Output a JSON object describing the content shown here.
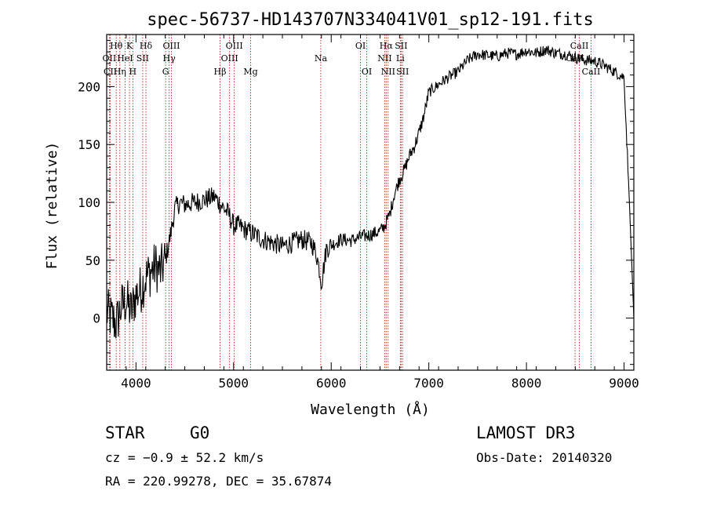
{
  "chart_data": {
    "type": "line",
    "title": "spec-56737-HD143707N334041V01_sp12-191.fits",
    "xlabel": "Wavelength (Å)",
    "ylabel": "Flux (relative)",
    "xlim": [
      3700,
      9100
    ],
    "ylim": [
      -45,
      245
    ],
    "xticks": [
      4000,
      5000,
      6000,
      7000,
      8000,
      9000
    ],
    "yticks": [
      0,
      50,
      100,
      150,
      200
    ],
    "series": [
      {
        "name": "flux",
        "x": [
          3700,
          3750,
          3800,
          3850,
          3900,
          3950,
          4000,
          4050,
          4100,
          4150,
          4200,
          4250,
          4300,
          4350,
          4400,
          4450,
          4500,
          4600,
          4700,
          4800,
          4850,
          4900,
          4950,
          5000,
          5050,
          5100,
          5200,
          5300,
          5400,
          5500,
          5600,
          5700,
          5800,
          5850,
          5880,
          5900,
          5920,
          5950,
          6000,
          6100,
          6200,
          6300,
          6400,
          6500,
          6550,
          6600,
          6650,
          6700,
          6750,
          6800,
          6850,
          6900,
          6950,
          7000,
          7100,
          7200,
          7300,
          7400,
          7500,
          7600,
          7700,
          7800,
          7900,
          8000,
          8100,
          8200,
          8300,
          8400,
          8500,
          8600,
          8700,
          8800,
          8900,
          9000,
          9050,
          9100
        ],
        "y": [
          5,
          0,
          -5,
          10,
          15,
          5,
          20,
          25,
          35,
          40,
          45,
          40,
          50,
          70,
          95,
          100,
          98,
          100,
          102,
          105,
          100,
          95,
          90,
          80,
          80,
          77,
          73,
          68,
          65,
          62,
          65,
          68,
          65,
          55,
          42,
          30,
          42,
          60,
          63,
          68,
          67,
          70,
          72,
          75,
          80,
          90,
          108,
          120,
          128,
          140,
          148,
          160,
          175,
          195,
          202,
          208,
          213,
          223,
          228,
          227,
          226,
          229,
          228,
          231,
          229,
          232,
          229,
          228,
          225,
          223,
          222,
          218,
          213,
          208,
          110,
          0
        ]
      }
    ],
    "lines": [
      {
        "label": "Hθ",
        "wl": 3798,
        "row": 1
      },
      {
        "label": "OII",
        "wl": 3727,
        "row": 2
      },
      {
        "label": "CII",
        "wl": 3737,
        "row": 3
      },
      {
        "label": "K",
        "wl": 3934,
        "row": 1
      },
      {
        "label": "HeI",
        "wl": 3889,
        "row": 2
      },
      {
        "label": "Hη",
        "wl": 3835,
        "row": 3
      },
      {
        "label": "Hδ",
        "wl": 4102,
        "row": 1
      },
      {
        "label": "SII",
        "wl": 4069,
        "row": 2
      },
      {
        "label": "H",
        "wl": 3968,
        "row": 3
      },
      {
        "label": "OIII",
        "wl": 4363,
        "row": 1
      },
      {
        "label": "Hγ",
        "wl": 4340,
        "row": 2
      },
      {
        "label": "G",
        "wl": 4304,
        "row": 3
      },
      {
        "label": "OIII",
        "wl": 5007,
        "row": 1
      },
      {
        "label": "OIII",
        "wl": 4959,
        "row": 2
      },
      {
        "label": "Hβ",
        "wl": 4861,
        "row": 3
      },
      {
        "label": "Mg",
        "wl": 5175,
        "row": 3
      },
      {
        "label": "Na",
        "wl": 5893,
        "row": 2
      },
      {
        "label": "OI",
        "wl": 6300,
        "row": 1
      },
      {
        "label": "OI",
        "wl": 6364,
        "row": 3
      },
      {
        "label": "Hα",
        "wl": 6563,
        "row": 1
      },
      {
        "label": "SII",
        "wl": 6716,
        "row": 1
      },
      {
        "label": "NII",
        "wl": 6548,
        "row": 2
      },
      {
        "label": "Li",
        "wl": 6708,
        "row": 2
      },
      {
        "label": "NII",
        "wl": 6583,
        "row": 3
      },
      {
        "label": "SII",
        "wl": 6731,
        "row": 3
      },
      {
        "label": "CaII",
        "wl": 8542,
        "row": 1
      },
      {
        "label": "CaII",
        "wl": 8498,
        "row": 2
      },
      {
        "label": "CaII",
        "wl": 8662,
        "row": 3
      }
    ]
  },
  "info": {
    "class_label": "STAR",
    "subclass": "G0",
    "survey": "LAMOST DR3",
    "cz": "cz = −0.9 ± 52.2 km/s",
    "obs_date": "Obs-Date: 20140320",
    "coords": "RA = 220.99278, DEC =  35.67874"
  }
}
